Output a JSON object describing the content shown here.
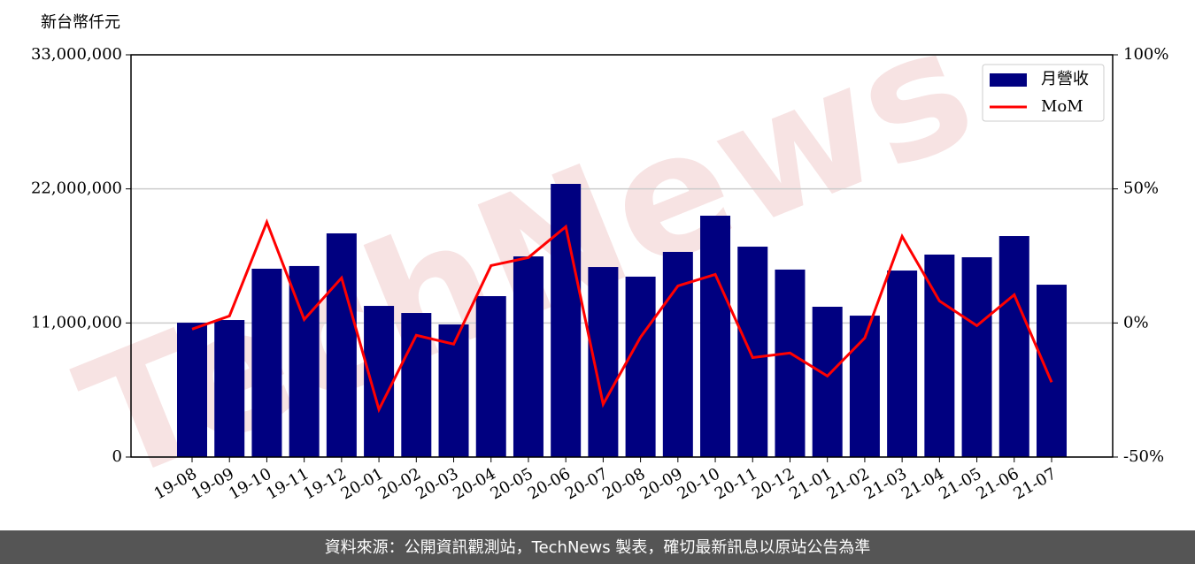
{
  "chart_data": {
    "type": "bar_line",
    "ylabel": "新台幣仟元",
    "watermark": "TechNews",
    "footer": "資料來源：公開資訊觀測站，TechNews 製表，確切最新訊息以原站公告為準",
    "categories": [
      "19-08",
      "19-09",
      "19-10",
      "19-11",
      "19-12",
      "20-01",
      "20-02",
      "20-03",
      "20-04",
      "20-05",
      "20-06",
      "20-07",
      "20-08",
      "20-09",
      "20-10",
      "20-11",
      "20-12",
      "21-01",
      "21-02",
      "21-03",
      "21-04",
      "21-05",
      "21-06",
      "21-07"
    ],
    "series": [
      {
        "name": "月營收",
        "type": "bar",
        "color": "#000080",
        "values": [
          11020000,
          11240000,
          15450000,
          15670000,
          18350000,
          12400000,
          11820000,
          10880000,
          13200000,
          16460000,
          22410000,
          15590000,
          14800000,
          16830000,
          19800000,
          17260000,
          15380000,
          12330000,
          11600000,
          15300000,
          16610000,
          16390000,
          18130000,
          14140000
        ]
      },
      {
        "name": "MoM",
        "type": "line",
        "axis": "y2",
        "color": "#ff0000",
        "values": [
          -2.3,
          2.6,
          37.6,
          1.3,
          16.8,
          -32.3,
          -4.6,
          -7.9,
          21.4,
          24.4,
          35.9,
          -30.3,
          -5.3,
          13.8,
          18.1,
          -12.9,
          -11.2,
          -19.8,
          -5.6,
          32.3,
          8.2,
          -1.0,
          10.5,
          -22.1
        ]
      }
    ],
    "ylim": [
      0,
      33000000
    ],
    "yticks": [
      0,
      {
        "value": 11000000,
        "label": "11,000,000"
      },
      {
        "value": 22000000,
        "label": "22,000,000"
      },
      {
        "value": 33000000,
        "label": "33,000,000"
      }
    ],
    "y2lim": [
      -50,
      100
    ],
    "y2ticks": [
      {
        "value": -50,
        "label": "-50%"
      },
      {
        "value": 0,
        "label": "0%"
      },
      {
        "value": 50,
        "label": "50%"
      },
      {
        "value": 100,
        "label": "100%"
      }
    ],
    "grid": true,
    "legend": "upper right"
  }
}
